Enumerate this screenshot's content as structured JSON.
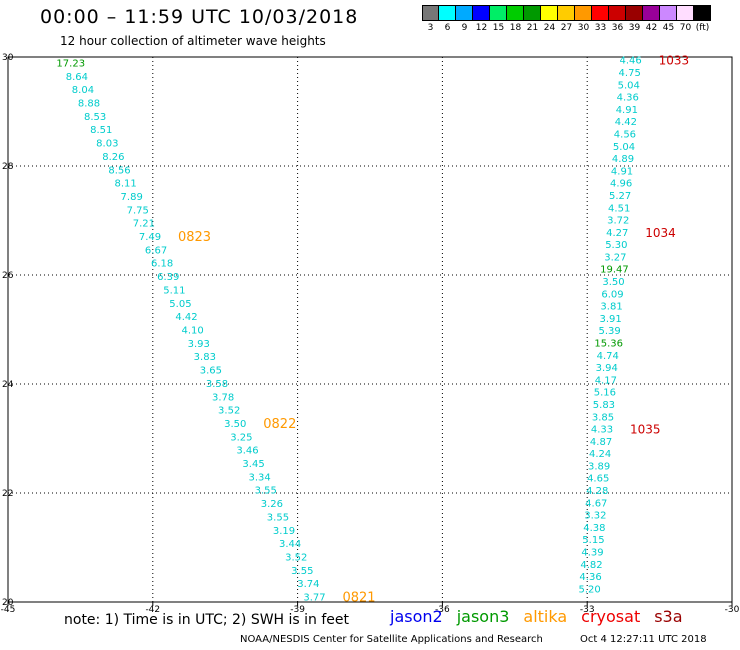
{
  "header": {
    "title": "00:00 – 11:59 UTC 10/03/2018",
    "subtitle": "12 hour collection of altimeter wave heights"
  },
  "legend": {
    "unit_label": "(ft)",
    "bins": [
      {
        "label": "3",
        "color": "#777777"
      },
      {
        "label": "6",
        "color": "#00ffff"
      },
      {
        "label": "9",
        "color": "#00aaff"
      },
      {
        "label": "12",
        "color": "#0000ff"
      },
      {
        "label": "15",
        "color": "#00ee66"
      },
      {
        "label": "18",
        "color": "#00cc00"
      },
      {
        "label": "21",
        "color": "#009900"
      },
      {
        "label": "24",
        "color": "#ffff00"
      },
      {
        "label": "27",
        "color": "#ffcc00"
      },
      {
        "label": "30",
        "color": "#ff9900"
      },
      {
        "label": "33",
        "color": "#ff0000"
      },
      {
        "label": "36",
        "color": "#cc0000"
      },
      {
        "label": "39",
        "color": "#990000"
      },
      {
        "label": "42",
        "color": "#990099"
      },
      {
        "label": "45",
        "color": "#cc88ff"
      },
      {
        "label": "70",
        "color": "#ffddff"
      },
      {
        "label": "",
        "color": "#000000"
      }
    ]
  },
  "map": {
    "lon_range": [
      -45,
      -30
    ],
    "lat_range": [
      20,
      30
    ],
    "lon_ticks": [
      "-45",
      "-42",
      "-39",
      "-36",
      "-33",
      "-30"
    ],
    "lat_ticks": [
      "30",
      "28",
      "26",
      "24",
      "22",
      "20"
    ],
    "colors": {
      "light": "#00cccc",
      "medium": "#009900",
      "label": "#ff9900",
      "label_s3a": "#cc0000"
    },
    "west_track": {
      "values": [
        "17.23",
        "8.64",
        "8.04",
        "8.88",
        "8.53",
        "8.51",
        "8.03",
        "8.26",
        "8.56",
        "8.11",
        "7.89",
        "7.75",
        "7.21",
        "7.49",
        "6.67",
        "6.18",
        "6.39",
        "5.11",
        "5.05",
        "4.42",
        "4.10",
        "3.93",
        "3.83",
        "3.65",
        "3.58",
        "3.78",
        "3.52",
        "3.50",
        "3.25",
        "3.46",
        "3.45",
        "3.34",
        "3.55",
        "3.26",
        "3.55",
        "3.19",
        "3.44",
        "3.52",
        "3.55",
        "3.74",
        "3.77"
      ],
      "medium_indices": [
        0
      ],
      "pass_labels": [
        {
          "text": "0823",
          "index": 13
        },
        {
          "text": "0822",
          "index": 27
        },
        {
          "text": "0821",
          "index": 40
        }
      ]
    },
    "east_track": {
      "values": [
        "4.46",
        "4.75",
        "5.04",
        "4.36",
        "4.91",
        "4.42",
        "4.56",
        "5.04",
        "4.89",
        "4.91",
        "4.96",
        "5.27",
        "4.51",
        "3.72",
        "4.27",
        "5.30",
        "3.27",
        "19.47",
        "3.50",
        "6.09",
        "3.81",
        "3.91",
        "5.39",
        "15.36",
        "4.74",
        "3.94",
        "4.17",
        "5.16",
        "5.83",
        "3.85",
        "4.33",
        "4.87",
        "4.24",
        "3.89",
        "4.65",
        "4.28",
        "4.67",
        "3.32",
        "4.38",
        "5.15",
        "4.39",
        "4.82",
        "4.36",
        "5.20"
      ],
      "medium_indices": [
        17,
        23
      ],
      "pass_labels": [
        {
          "text": "1033",
          "index": 0
        },
        {
          "text": "1034",
          "index": 14
        },
        {
          "text": "1035",
          "index": 30
        }
      ]
    }
  },
  "footer": {
    "note": "note:  1) Time is in UTC;  2) SWH is in feet",
    "missions": [
      {
        "name": "jason2",
        "color": "#0000ee"
      },
      {
        "name": "jason3",
        "color": "#009900"
      },
      {
        "name": "altika",
        "color": "#ff9900"
      },
      {
        "name": "cryosat",
        "color": "#ee0000"
      },
      {
        "name": "s3a",
        "color": "#990000"
      }
    ],
    "credit": "NOAA/NESDIS Center for Satellite Applications and Research",
    "timestamp": "Oct  4 12:27:11 UTC 2018"
  }
}
